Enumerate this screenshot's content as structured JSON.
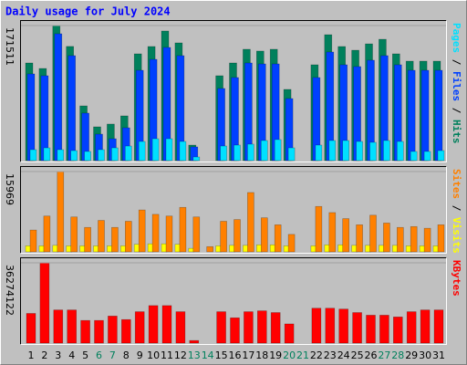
{
  "chart_data": [
    {
      "type": "bar",
      "title": "Daily usage for July 2024",
      "ylim": [
        0,
        171511
      ],
      "yticks": [
        171511
      ],
      "series": [
        {
          "name": "Hits",
          "color": "#00805c",
          "values": [
            124000,
            117000,
            171511,
            145000,
            69500,
            42900,
            46400,
            56800,
            135600,
            144900,
            164600,
            149500,
            19700,
            0,
            107800,
            124000,
            141400,
            139100,
            141400,
            90400,
            0,
            121700,
            159900,
            144900,
            140200,
            148300,
            154100,
            135600,
            126300,
            126300,
            126300
          ]
        },
        {
          "name": "Files",
          "color": "#0040ff",
          "values": [
            110100,
            107800,
            161100,
            133300,
            60300,
            33600,
            27800,
            41700,
            114700,
            128600,
            143700,
            133300,
            17400,
            0,
            91600,
            105500,
            124000,
            122800,
            122800,
            78800,
            0,
            105500,
            137900,
            121700,
            119400,
            127500,
            133300,
            121700,
            114700,
            114700,
            114700
          ]
        },
        {
          "name": "Pages",
          "color": "#00e0ff",
          "values": [
            13900,
            16200,
            13900,
            12700,
            11600,
            13900,
            16200,
            18500,
            24300,
            27800,
            27800,
            24300,
            4600,
            0,
            18500,
            19700,
            20900,
            25500,
            26700,
            16200,
            0,
            19700,
            25500,
            25500,
            24300,
            23200,
            25500,
            24300,
            11600,
            11600,
            12700
          ]
        }
      ]
    },
    {
      "type": "bar",
      "ylim": [
        0,
        15969
      ],
      "yticks": [
        15969
      ],
      "series": [
        {
          "name": "Visits",
          "color": "#ffff00",
          "values": [
            1200,
            1200,
            1300,
            1200,
            1200,
            1200,
            1200,
            1200,
            1500,
            1600,
            1600,
            1500,
            700,
            0,
            1200,
            1300,
            1300,
            1400,
            1400,
            1200,
            0,
            1200,
            1400,
            1400,
            1300,
            1300,
            1300,
            1300,
            1200,
            1200,
            1200
          ]
        },
        {
          "name": "Sites",
          "color": "#ff8000",
          "values": [
            4340,
            7120,
            15969,
            6940,
            4860,
            6250,
            4860,
            6080,
            8330,
            7460,
            7120,
            8850,
            6940,
            1040,
            6080,
            6420,
            11800,
            6770,
            5380,
            3470,
            0,
            9030,
            7810,
            6600,
            5380,
            7290,
            5730,
            4860,
            5030,
            4690,
            5380
          ]
        }
      ]
    },
    {
      "type": "bar",
      "ylim": [
        0,
        36274122
      ],
      "yticks": [
        36274122
      ],
      "categories": [
        "1",
        "2",
        "3",
        "4",
        "5",
        "6",
        "7",
        "8",
        "9",
        "10",
        "11",
        "12",
        "13",
        "14",
        "15",
        "16",
        "17",
        "18",
        "19",
        "20",
        "21",
        "22",
        "23",
        "24",
        "25",
        "26",
        "27",
        "28",
        "29",
        "30",
        "31"
      ],
      "category_colors": [
        "#000000",
        "#000000",
        "#000000",
        "#000000",
        "#000000",
        "#00805c",
        "#00805c",
        "#000000",
        "#000000",
        "#000000",
        "#000000",
        "#000000",
        "#00805c",
        "#00805c",
        "#000000",
        "#000000",
        "#000000",
        "#000000",
        "#000000",
        "#00805c",
        "#00805c",
        "#000000",
        "#000000",
        "#000000",
        "#000000",
        "#000000",
        "#00805c",
        "#00805c",
        "#000000",
        "#000000",
        "#000000"
      ],
      "series": [
        {
          "name": "KBytes",
          "color": "#ff0000",
          "values": [
            13406000,
            36274122,
            14983000,
            14983000,
            10251000,
            10251000,
            12223000,
            10646000,
            14194000,
            16954000,
            16954000,
            14194000,
            1183000,
            0,
            14194000,
            11434000,
            14194000,
            14589000,
            13800000,
            8674000,
            0,
            15771000,
            15771000,
            15377000,
            13800000,
            12617000,
            12617000,
            11829000,
            14194000,
            14983000,
            14983000
          ]
        }
      ]
    }
  ]
}
